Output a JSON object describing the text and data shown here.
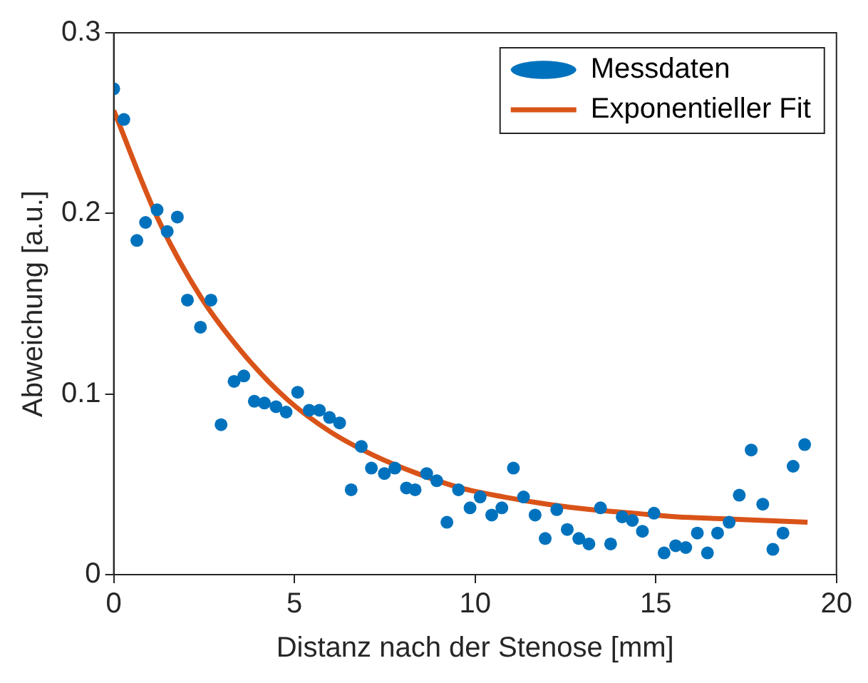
{
  "chart_data": {
    "type": "scatter",
    "xlabel": "Distanz nach der Stenose [mm]",
    "ylabel": "Abweichung [a.u.]",
    "xlim": [
      0,
      20
    ],
    "xticks": [
      0,
      5,
      10,
      15,
      20
    ],
    "ylim": [
      0,
      0.3
    ],
    "yticks": [
      0,
      0.1,
      0.2,
      0.3
    ],
    "grid": false,
    "legend": "top right",
    "marker": "circle",
    "series": [
      {
        "name": "Messdaten",
        "type": "scatter",
        "color": "#0072bd",
        "x": [
          0,
          0.28,
          0.64,
          0.88,
          1.2,
          1.48,
          1.76,
          2.04,
          2.4,
          2.69,
          2.97,
          3.33,
          3.6,
          3.89,
          4.17,
          4.49,
          4.77,
          5.09,
          5.41,
          5.69,
          5.97,
          6.25,
          6.57,
          6.85,
          7.13,
          7.49,
          7.78,
          8.1,
          8.34,
          8.66,
          8.94,
          9.22,
          9.54,
          9.86,
          10.14,
          10.46,
          10.74,
          11.06,
          11.34,
          11.66,
          11.94,
          12.26,
          12.55,
          12.87,
          13.15,
          13.47,
          13.75,
          14.07,
          14.35,
          14.63,
          14.95,
          15.23,
          15.55,
          15.83,
          16.15,
          16.43,
          16.71,
          17.03,
          17.31,
          17.64,
          17.96,
          18.24,
          18.52,
          18.8,
          19.12
        ],
        "values": [
          0.269,
          0.252,
          0.185,
          0.195,
          0.202,
          0.19,
          0.198,
          0.152,
          0.137,
          0.152,
          0.083,
          0.107,
          0.11,
          0.096,
          0.095,
          0.093,
          0.09,
          0.101,
          0.091,
          0.091,
          0.087,
          0.084,
          0.047,
          0.071,
          0.059,
          0.056,
          0.059,
          0.048,
          0.047,
          0.056,
          0.052,
          0.029,
          0.047,
          0.037,
          0.043,
          0.033,
          0.037,
          0.059,
          0.043,
          0.033,
          0.02,
          0.036,
          0.025,
          0.02,
          0.017,
          0.037,
          0.017,
          0.032,
          0.03,
          0.024,
          0.034,
          0.012,
          0.016,
          0.015,
          0.023,
          0.012,
          0.023,
          0.029,
          0.044,
          0.069,
          0.039,
          0.014,
          0.023,
          0.06,
          0.072
        ]
      },
      {
        "name": "Exponentieller Fit",
        "type": "line",
        "color": "#d95319",
        "marker": "none",
        "line_style": "solid",
        "x": [
          0,
          1.2,
          2.4,
          3.6,
          4.8,
          6,
          7.2,
          8.4,
          9.6,
          10.8,
          12,
          13.2,
          14.4,
          15.6,
          16.8,
          18,
          19.2
        ],
        "values": [
          0.257,
          0.198,
          0.154,
          0.122,
          0.097,
          0.079,
          0.066,
          0.056,
          0.048,
          0.043,
          0.039,
          0.036,
          0.034,
          0.032,
          0.031,
          0.03,
          0.029
        ]
      }
    ]
  }
}
